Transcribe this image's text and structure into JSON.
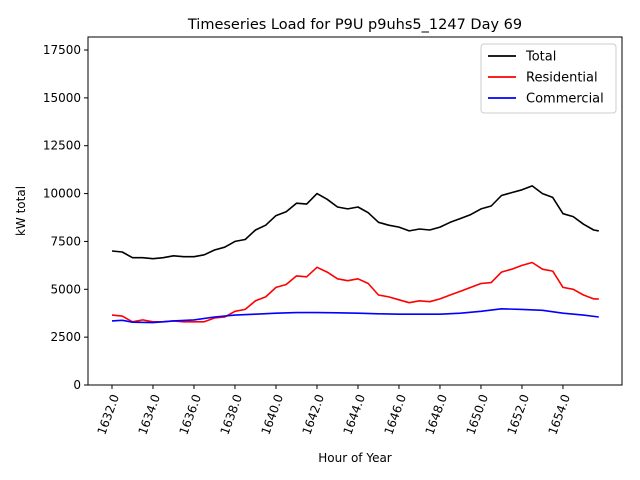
{
  "chart_data": {
    "type": "line",
    "title": "Timeseries Load for P9U p9uhs5_1247  Day 69",
    "xlabel": "Hour of Year",
    "ylabel": "kW total",
    "xlim": [
      1630.83,
      1656.88
    ],
    "ylim": [
      0,
      18180
    ],
    "xticks": [
      1632,
      1634,
      1636,
      1638,
      1640,
      1642,
      1644,
      1646,
      1648,
      1650,
      1652,
      1654
    ],
    "xtick_labels": [
      "1632.0",
      "1634.0",
      "1636.0",
      "1638.0",
      "1640.0",
      "1642.0",
      "1644.0",
      "1646.0",
      "1648.0",
      "1650.0",
      "1652.0",
      "1654.0"
    ],
    "yticks": [
      0,
      2500,
      5000,
      7500,
      10000,
      12500,
      15000,
      17500
    ],
    "ytick_labels": [
      "0",
      "2500",
      "5000",
      "7500",
      "10000",
      "12500",
      "15000",
      "17500"
    ],
    "grid": false,
    "legend_position": "top-right",
    "series": [
      {
        "name": "Total",
        "color": "#000000",
        "x": [
          1632,
          1632.5,
          1633,
          1633.5,
          1634,
          1634.5,
          1635,
          1635.5,
          1636,
          1636.5,
          1637,
          1637.5,
          1638,
          1638.5,
          1639,
          1639.5,
          1640,
          1640.5,
          1641,
          1641.5,
          1642,
          1642.5,
          1643,
          1643.5,
          1644,
          1644.5,
          1645,
          1645.5,
          1646,
          1646.5,
          1647,
          1647.5,
          1648,
          1648.5,
          1649,
          1649.5,
          1650,
          1650.5,
          1651,
          1651.5,
          1652,
          1652.5,
          1653,
          1653.5,
          1654,
          1654.5,
          1655,
          1655.5,
          1655.75
        ],
        "values": [
          7000,
          6950,
          6650,
          6650,
          6600,
          6650,
          6750,
          6700,
          6700,
          6800,
          7050,
          7200,
          7500,
          7600,
          8100,
          8350,
          8850,
          9050,
          9500,
          9450,
          10000,
          9700,
          9300,
          9200,
          9300,
          9000,
          8500,
          8350,
          8250,
          8050,
          8150,
          8100,
          8250,
          8500,
          8700,
          8900,
          9200,
          9350,
          9900,
          10050,
          10200,
          10400,
          10000,
          9800,
          8950,
          8800,
          8400,
          8100,
          8050
        ]
      },
      {
        "name": "Residential",
        "color": "#ff0000",
        "x": [
          1632,
          1632.5,
          1633,
          1633.5,
          1634,
          1634.5,
          1635,
          1635.5,
          1636,
          1636.5,
          1637,
          1637.5,
          1638,
          1638.5,
          1639,
          1639.5,
          1640,
          1640.5,
          1641,
          1641.5,
          1642,
          1642.5,
          1643,
          1643.5,
          1644,
          1644.5,
          1645,
          1645.5,
          1646,
          1646.5,
          1647,
          1647.5,
          1648,
          1648.5,
          1649,
          1649.5,
          1650,
          1650.5,
          1651,
          1651.5,
          1652,
          1652.5,
          1653,
          1653.5,
          1654,
          1654.5,
          1655,
          1655.5,
          1655.75
        ],
        "values": [
          3650,
          3600,
          3300,
          3400,
          3300,
          3300,
          3350,
          3300,
          3300,
          3300,
          3500,
          3550,
          3850,
          3950,
          4400,
          4600,
          5100,
          5250,
          5700,
          5650,
          6150,
          5900,
          5550,
          5450,
          5550,
          5300,
          4700,
          4600,
          4450,
          4300,
          4400,
          4350,
          4500,
          4700,
          4900,
          5100,
          5300,
          5350,
          5900,
          6050,
          6250,
          6400,
          6050,
          5950,
          5100,
          5000,
          4700,
          4500,
          4500
        ]
      },
      {
        "name": "Commercial",
        "color": "#0000ff",
        "x": [
          1632,
          1632.5,
          1633,
          1634,
          1635,
          1636,
          1637,
          1638,
          1639,
          1640,
          1641,
          1642,
          1643,
          1644,
          1645,
          1646,
          1647,
          1648,
          1649,
          1650,
          1651,
          1652,
          1653,
          1654,
          1655,
          1655.75
        ],
        "values": [
          3350,
          3380,
          3280,
          3260,
          3350,
          3400,
          3550,
          3650,
          3700,
          3750,
          3780,
          3780,
          3770,
          3750,
          3720,
          3700,
          3700,
          3700,
          3750,
          3850,
          3980,
          3950,
          3900,
          3750,
          3650,
          3550
        ]
      }
    ]
  }
}
